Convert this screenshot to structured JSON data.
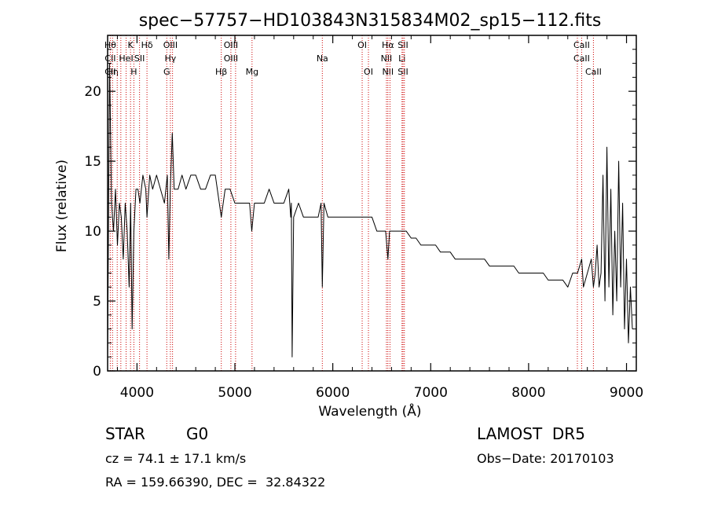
{
  "header": {
    "title": "spec−57757−HD103843N315834M02_sp15−112.fits"
  },
  "info": {
    "object_class": "STAR",
    "subclass": "G0",
    "survey": "LAMOST  DR5",
    "cz": "cz = 74.1 ± 17.1 km/s",
    "obs_date": "Obs−Date: 20170103",
    "coords": "RA = 159.66390, DEC =  32.84322"
  },
  "chart_data": {
    "type": "line",
    "title": "spec−57757−HD103843N315834M02_sp15−112.fits",
    "xlabel": "Wavelength (Å)",
    "ylabel": "Flux (relative)",
    "xlim": [
      3700,
      9100
    ],
    "ylim": [
      0,
      24
    ],
    "xticks": [
      4000,
      5000,
      6000,
      7000,
      8000,
      9000
    ],
    "yticks": [
      0,
      5,
      10,
      15,
      20
    ],
    "line_color": "#000000",
    "marker_color": "#cc0000",
    "series": [
      {
        "x": [
          3700,
          3720,
          3740,
          3760,
          3780,
          3800,
          3820,
          3840,
          3860,
          3880,
          3900,
          3920,
          3935,
          3950,
          3968,
          3990,
          4010,
          4030,
          4060,
          4090,
          4102,
          4130,
          4160,
          4200,
          4240,
          4280,
          4310,
          4325,
          4340,
          4360,
          4380,
          4420,
          4460,
          4500,
          4550,
          4600,
          4650,
          4700,
          4750,
          4800,
          4861,
          4900,
          4950,
          5000,
          5050,
          5100,
          5150,
          5172,
          5200,
          5250,
          5300,
          5350,
          5400,
          5450,
          5500,
          5550,
          5570,
          5577,
          5585,
          5600,
          5650,
          5700,
          5750,
          5800,
          5850,
          5880,
          5893,
          5910,
          5950,
          6000,
          6050,
          6100,
          6150,
          6200,
          6250,
          6300,
          6350,
          6400,
          6450,
          6500,
          6540,
          6563,
          6580,
          6600,
          6650,
          6700,
          6750,
          6800,
          6850,
          6900,
          6950,
          7000,
          7050,
          7100,
          7150,
          7200,
          7250,
          7300,
          7350,
          7400,
          7450,
          7500,
          7550,
          7600,
          7650,
          7700,
          7750,
          7800,
          7850,
          7900,
          7950,
          8000,
          8050,
          8100,
          8150,
          8200,
          8250,
          8300,
          8350,
          8400,
          8450,
          8500,
          8542,
          8560,
          8600,
          8640,
          8662,
          8680,
          8700,
          8720,
          8740,
          8760,
          8780,
          8800,
          8820,
          8840,
          8860,
          8880,
          8900,
          8920,
          8940,
          8960,
          8980,
          9000,
          9020,
          9040,
          9060
        ],
        "y": [
          1,
          22,
          12,
          10,
          13,
          9,
          12,
          11,
          8,
          12,
          10,
          6,
          12,
          3,
          10,
          13,
          13,
          12,
          14,
          13,
          11,
          14,
          13,
          14,
          13,
          12,
          14,
          8,
          13,
          17,
          13,
          13,
          14,
          13,
          14,
          14,
          13,
          13,
          14,
          14,
          11,
          13,
          13,
          12,
          12,
          12,
          12,
          10,
          12,
          12,
          12,
          13,
          12,
          12,
          12,
          13,
          11,
          12,
          1,
          11,
          12,
          11,
          11,
          11,
          11,
          12,
          6,
          12,
          11,
          11,
          11,
          11,
          11,
          11,
          11,
          11,
          11,
          11,
          10,
          10,
          10,
          8,
          10,
          10,
          10,
          10,
          10,
          9.5,
          9.5,
          9,
          9,
          9,
          9,
          8.5,
          8.5,
          8.5,
          8,
          8,
          8,
          8,
          8,
          8,
          8,
          7.5,
          7.5,
          7.5,
          7.5,
          7.5,
          7.5,
          7,
          7,
          7,
          7,
          7,
          7,
          6.5,
          6.5,
          6.5,
          6.5,
          6,
          7,
          7,
          8,
          6,
          7,
          8,
          6,
          7,
          9,
          6,
          7,
          14,
          5,
          16,
          6,
          13,
          4,
          10,
          5,
          15,
          6,
          12,
          3,
          8,
          2,
          6,
          3
        ]
      }
    ],
    "line_markers": [
      {
        "w": 3727,
        "top": "Hθ",
        "mid": "CII",
        "bot": "CII"
      },
      {
        "w": 3750,
        "top": "",
        "mid": "",
        "bot": "Hη"
      },
      {
        "w": 3798,
        "top": "",
        "mid": "",
        "bot": ""
      },
      {
        "w": 3835,
        "top": "",
        "mid": "",
        "bot": ""
      },
      {
        "w": 3889,
        "top": "",
        "mid": "HeI",
        "bot": ""
      },
      {
        "w": 3934,
        "top": "K",
        "mid": "",
        "bot": ""
      },
      {
        "w": 3968,
        "top": "",
        "mid": "",
        "bot": "H"
      },
      {
        "w": 4026,
        "top": "",
        "mid": "SII",
        "bot": ""
      },
      {
        "w": 4102,
        "top": "Hδ",
        "mid": "",
        "bot": ""
      },
      {
        "w": 4304,
        "top": "",
        "mid": "",
        "bot": "G"
      },
      {
        "w": 4341,
        "top": "OIII",
        "mid": "Hγ",
        "bot": ""
      },
      {
        "w": 4363,
        "top": "",
        "mid": "",
        "bot": ""
      },
      {
        "w": 4861,
        "top": "",
        "mid": "",
        "bot": "Hβ"
      },
      {
        "w": 4959,
        "top": "OIII",
        "mid": "OIII",
        "bot": ""
      },
      {
        "w": 5007,
        "top": "",
        "mid": "",
        "bot": ""
      },
      {
        "w": 5175,
        "top": "",
        "mid": "",
        "bot": "Mg"
      },
      {
        "w": 5893,
        "top": "",
        "mid": "Na",
        "bot": ""
      },
      {
        "w": 6300,
        "top": "OI",
        "mid": "",
        "bot": ""
      },
      {
        "w": 6364,
        "top": "",
        "mid": "",
        "bot": "OI"
      },
      {
        "w": 6548,
        "top": "",
        "mid": "NII",
        "bot": ""
      },
      {
        "w": 6563,
        "top": "Hα",
        "mid": "",
        "bot": "NII"
      },
      {
        "w": 6584,
        "top": "",
        "mid": "",
        "bot": ""
      },
      {
        "w": 6707,
        "top": "",
        "mid": "Li",
        "bot": ""
      },
      {
        "w": 6717,
        "top": "SII",
        "mid": "",
        "bot": "SII"
      },
      {
        "w": 6731,
        "top": "",
        "mid": "",
        "bot": ""
      },
      {
        "w": 8498,
        "top": "",
        "mid": "",
        "bot": ""
      },
      {
        "w": 8542,
        "top": "CaII",
        "mid": "CaII",
        "bot": ""
      },
      {
        "w": 8662,
        "top": "",
        "mid": "",
        "bot": "CaII"
      }
    ]
  }
}
